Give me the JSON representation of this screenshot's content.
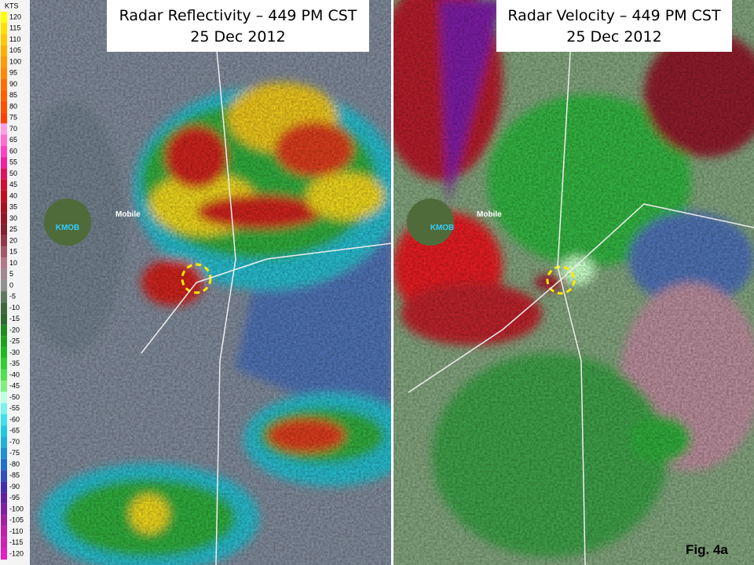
{
  "colorbar": {
    "unit": "KTS",
    "labels": [
      120,
      115,
      110,
      105,
      100,
      95,
      90,
      85,
      80,
      75,
      70,
      65,
      60,
      55,
      50,
      45,
      40,
      35,
      30,
      25,
      20,
      15,
      10,
      5,
      0,
      -5,
      -10,
      -15,
      -20,
      -25,
      -30,
      -35,
      -40,
      -45,
      -50,
      -55,
      -60,
      -65,
      -70,
      -75,
      -80,
      -85,
      -90,
      -95,
      -100,
      -105,
      -110,
      -115,
      -120
    ]
  },
  "panels": [
    {
      "title": "Radar Reflectivity – 449 PM CST",
      "date": "25 Dec 2012",
      "city": "Mobile",
      "station": "KMOB"
    },
    {
      "title": "Radar Velocity – 449 PM CST",
      "date": "25 Dec 2012",
      "city": "Mobile",
      "station": "KMOB"
    }
  ],
  "figure_label": "Fig. 4a"
}
